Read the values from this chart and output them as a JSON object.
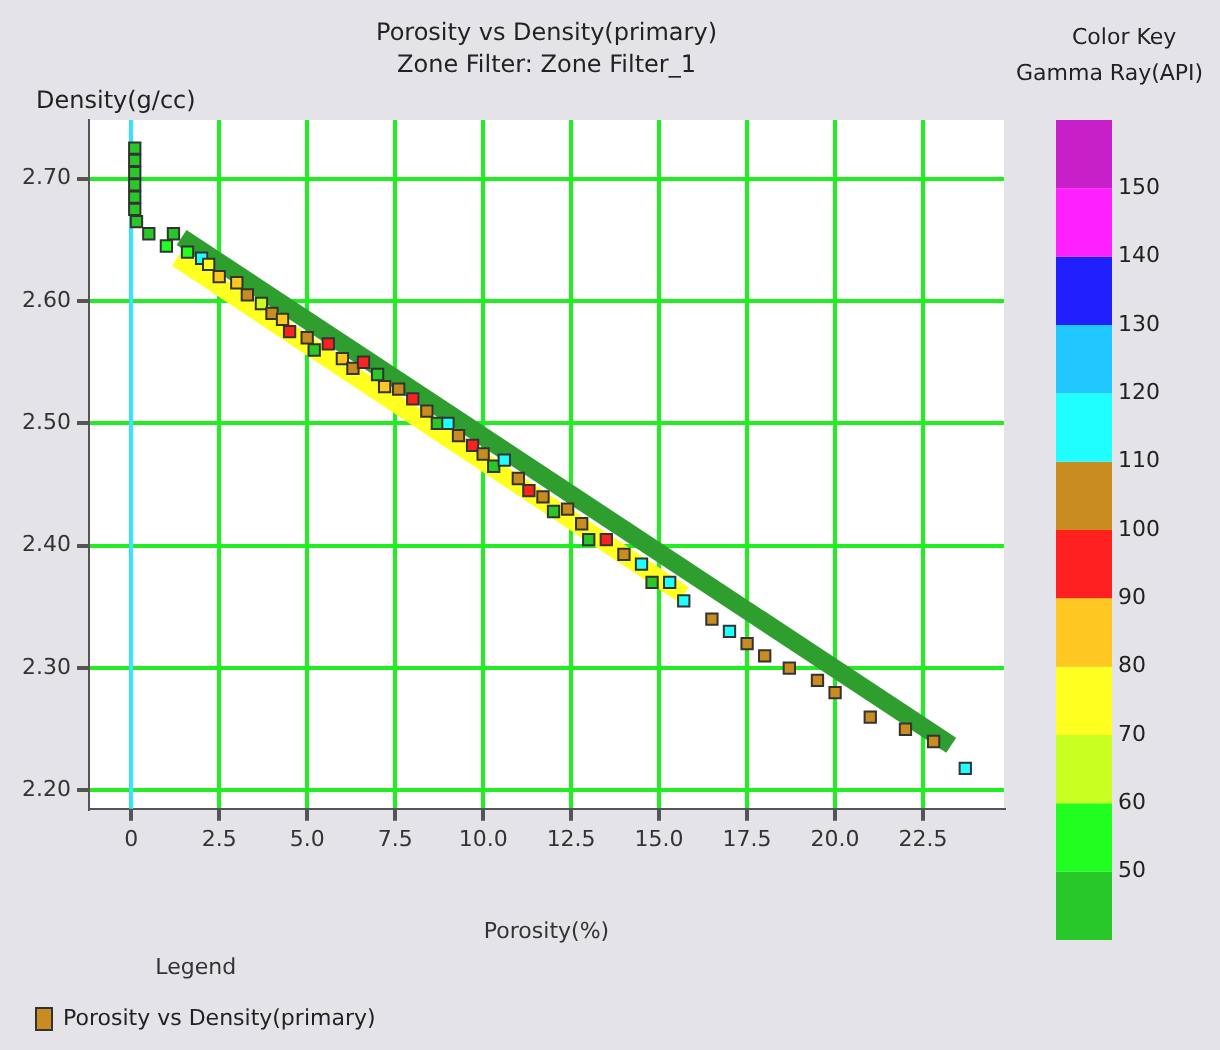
{
  "chart_data": {
    "type": "scatter",
    "title": "Porosity vs Density(primary)",
    "subtitle": "Zone Filter: Zone Filter_1",
    "xlabel": "Porosity(%)",
    "ylabel": "Density(g/cc)",
    "clabel": "Gamma Ray(API)",
    "legend_title": "Legend",
    "annotations": [
      "Color Key"
    ],
    "xlim": [
      -1.2,
      24.8
    ],
    "ylim": [
      2.185,
      2.748
    ],
    "xticks": [
      0,
      {
        "value": 2.5,
        "label": "2.5"
      },
      {
        "value": 5,
        "label": "5.0"
      },
      {
        "value": 7.5,
        "label": "7.5"
      },
      {
        "value": 10,
        "label": "10.0"
      },
      {
        "value": 12.5,
        "label": "12.5"
      },
      {
        "value": 15,
        "label": "15.0"
      },
      {
        "value": 17.5,
        "label": "17.5"
      },
      {
        "value": 20,
        "label": "20.0"
      },
      {
        "value": 22.5,
        "label": "22.5"
      }
    ],
    "yticks": [
      {
        "value": 2.2,
        "label": "2.20"
      },
      {
        "value": 2.3,
        "label": "2.30"
      },
      {
        "value": 2.4,
        "label": "2.40"
      },
      {
        "value": 2.5,
        "label": "2.50"
      },
      {
        "value": 2.6,
        "label": "2.60"
      },
      {
        "value": 2.7,
        "label": "2.70"
      }
    ],
    "clim": [
      40,
      160
    ],
    "cticks": [
      50,
      60,
      70,
      80,
      90,
      100,
      110,
      120,
      130,
      140,
      150
    ],
    "grid": true,
    "legend": "bottom left",
    "ref_lines": [
      {
        "axis": "x",
        "value": 0,
        "color": "#40e0ff"
      }
    ],
    "series": [
      {
        "type": "line",
        "color": "#2e9e2e",
        "x": [
          1.43,
          23.3
        ],
        "values": [
          2.652,
          2.237
        ]
      },
      {
        "type": "line",
        "color": "#ffff20",
        "x": [
          1.3,
          15.7
        ],
        "values": [
          2.635,
          2.36
        ]
      },
      {
        "name": "Porosity vs Density(primary)",
        "color": "#c88c20",
        "marker": "square",
        "colors": [
          "#28c828",
          "#28c828",
          "#28c828",
          "#28c828",
          "#28c828",
          "#28c828",
          "#28c828",
          "#28c828",
          "#28c828",
          "#20ff20",
          "#20ff20",
          "#20ffff",
          "#ffff20",
          "#ffc820",
          "#ffc820",
          "#c88c20",
          "#c8ff20",
          "#c88c20",
          "#ffc820",
          "#ff2020",
          "#c88c20",
          "#28c828",
          "#ff2020",
          "#ffc820",
          "#c88c20",
          "#ff2020",
          "#28c828",
          "#ffc820",
          "#c88c20",
          "#ff2020",
          "#c88c20",
          "#28c828",
          "#20ffff",
          "#c88c20",
          "#ff2020",
          "#c88c20",
          "#28c828",
          "#20ffff",
          "#c88c20",
          "#ff2020",
          "#c88c20",
          "#28c828",
          "#c88c20",
          "#c88c20",
          "#28c828",
          "#ff2020",
          "#c88c20",
          "#20ffff",
          "#28c828",
          "#20ffff",
          "#20ffff",
          "#c88c20",
          "#20ffff",
          "#c88c20",
          "#c88c20",
          "#c88c20",
          "#c88c20",
          "#c88c20",
          "#c88c20",
          "#c88c20",
          "#c88c20",
          "#20ffff"
        ],
        "x": [
          0.1,
          0.1,
          0.1,
          0.1,
          0.1,
          0.1,
          0.15,
          0.5,
          1.2,
          1.0,
          1.6,
          2.0,
          2.2,
          2.5,
          3.0,
          3.3,
          3.7,
          4.0,
          4.3,
          4.5,
          5.0,
          5.2,
          5.6,
          6.0,
          6.3,
          6.6,
          7.0,
          7.2,
          7.6,
          8.0,
          8.4,
          8.7,
          9.0,
          9.3,
          9.7,
          10.0,
          10.3,
          10.6,
          11.0,
          11.3,
          11.7,
          12.0,
          12.4,
          12.8,
          13.0,
          13.5,
          14.0,
          14.5,
          14.8,
          15.3,
          15.7,
          16.5,
          17.0,
          17.5,
          18.0,
          18.7,
          19.5,
          20.0,
          21.0,
          22.0,
          22.8,
          23.7
        ],
        "values": [
          2.725,
          2.715,
          2.705,
          2.695,
          2.685,
          2.675,
          2.665,
          2.655,
          2.655,
          2.645,
          2.64,
          2.635,
          2.63,
          2.62,
          2.615,
          2.605,
          2.598,
          2.59,
          2.585,
          2.575,
          2.57,
          2.56,
          2.565,
          2.553,
          2.545,
          2.55,
          2.54,
          2.53,
          2.528,
          2.52,
          2.51,
          2.5,
          2.5,
          2.49,
          2.482,
          2.475,
          2.465,
          2.47,
          2.455,
          2.445,
          2.44,
          2.428,
          2.43,
          2.418,
          2.405,
          2.405,
          2.393,
          2.385,
          2.37,
          2.37,
          2.355,
          2.34,
          2.33,
          2.32,
          2.31,
          2.3,
          2.29,
          2.28,
          2.26,
          2.25,
          2.24,
          2.218
        ]
      }
    ]
  }
}
